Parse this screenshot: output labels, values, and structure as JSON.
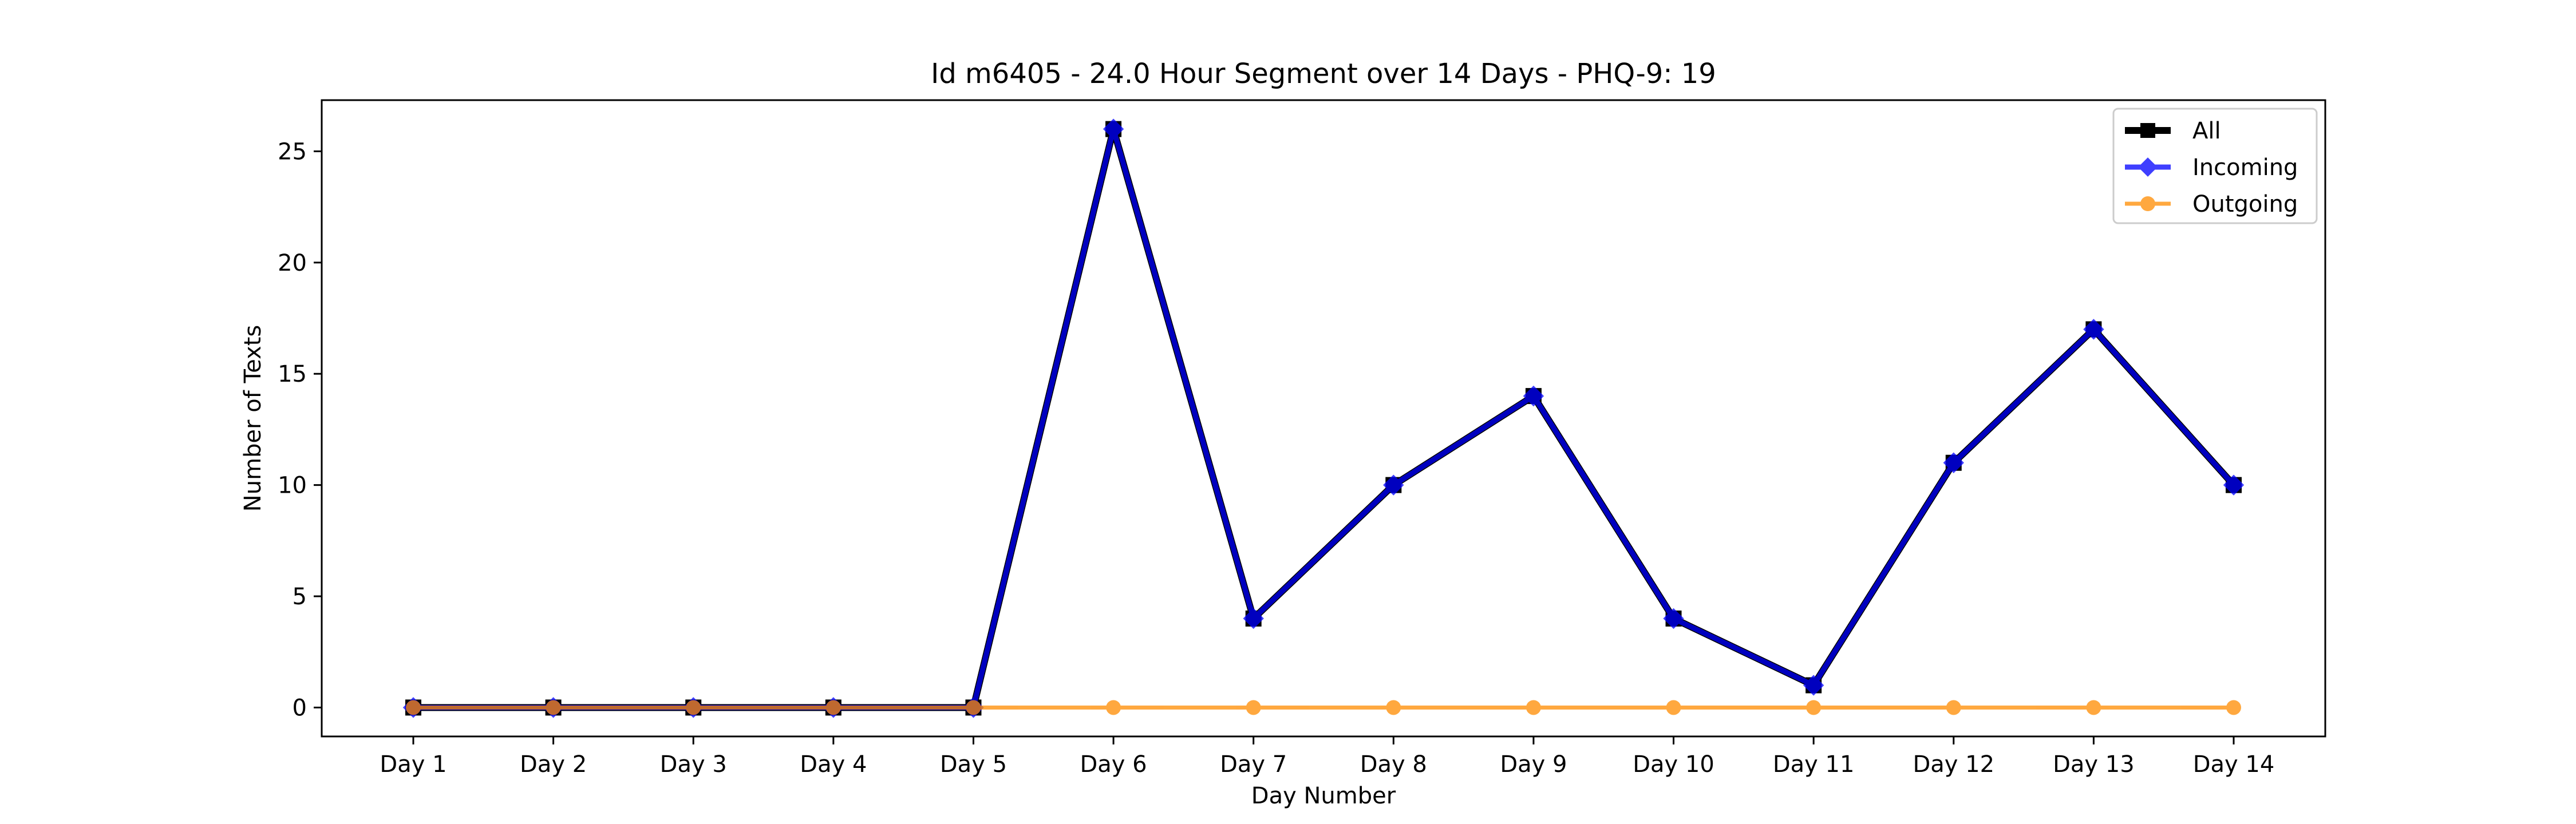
{
  "chart_data": {
    "type": "line",
    "title": "Id m6405 - 24.0 Hour Segment over 14 Days - PHQ-9: 19",
    "xlabel": "Day Number",
    "ylabel": "Number of Texts",
    "categories": [
      "Day 1",
      "Day 2",
      "Day 3",
      "Day 4",
      "Day 5",
      "Day 6",
      "Day 7",
      "Day 8",
      "Day 9",
      "Day 10",
      "Day 11",
      "Day 12",
      "Day 13",
      "Day 14"
    ],
    "ylim": [
      -1.3,
      27.3
    ],
    "yticks": [
      0,
      5,
      10,
      15,
      20,
      25
    ],
    "grid": false,
    "legend": "top-right",
    "series": [
      {
        "name": "All",
        "color": "#000000",
        "marker": "square",
        "values": [
          0,
          0,
          0,
          0,
          0,
          26,
          4,
          10,
          14,
          4,
          1,
          11,
          17,
          10
        ]
      },
      {
        "name": "Incoming",
        "color": "#0000ff",
        "marker": "diamond",
        "values": [
          0,
          0,
          0,
          0,
          0,
          26,
          4,
          10,
          14,
          4,
          1,
          11,
          17,
          10
        ]
      },
      {
        "name": "Outgoing",
        "color": "#ff8c00",
        "marker": "circle",
        "values": [
          0,
          0,
          0,
          0,
          0,
          0,
          0,
          0,
          0,
          0,
          0,
          0,
          0,
          0
        ]
      }
    ]
  }
}
